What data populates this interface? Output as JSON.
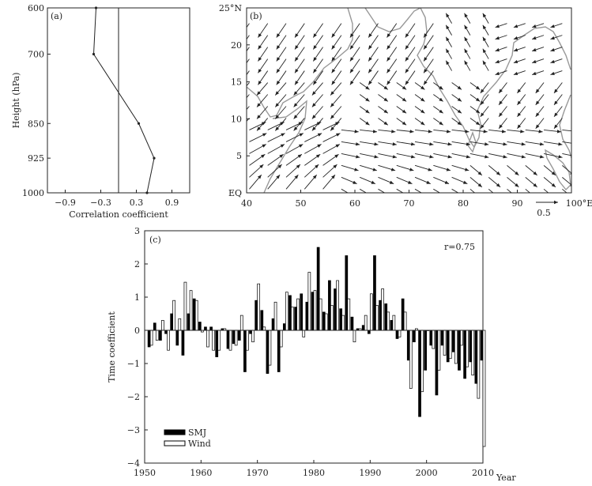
{
  "chart_data": [
    {
      "panel": "(a)",
      "type": "line",
      "xlabel": "Correlation coefficient",
      "ylabel": "Height (hPa)",
      "x_ticks": [
        "−0.9",
        "−0.3",
        "0.3",
        "0.9"
      ],
      "x_tick_values": [
        -0.9,
        -0.3,
        0.3,
        0.9
      ],
      "y_ticks": [
        "600",
        "700",
        "850",
        "925",
        "1000"
      ],
      "y_tick_values": [
        600,
        700,
        850,
        925,
        1000
      ],
      "xlim": [
        -1.2,
        1.2
      ],
      "ylim": [
        600,
        1000
      ],
      "reference_line_x": 0,
      "points": [
        {
          "level": 600,
          "r": -0.38
        },
        {
          "level": 700,
          "r": -0.42
        },
        {
          "level": 850,
          "r": 0.34
        },
        {
          "level": 925,
          "r": 0.6
        },
        {
          "level": 1000,
          "r": 0.48
        }
      ]
    },
    {
      "panel": "(b)",
      "type": "vector map",
      "x_ticks": [
        "40",
        "50",
        "60",
        "70",
        "80",
        "90",
        "100°E"
      ],
      "x_tick_values": [
        40,
        50,
        60,
        70,
        80,
        90,
        100
      ],
      "y_ticks": [
        "EQ",
        "5",
        "10",
        "15",
        "20",
        "25°N"
      ],
      "y_tick_values": [
        0,
        5,
        10,
        15,
        20,
        25
      ],
      "xlim": [
        40,
        100
      ],
      "ylim": [
        0,
        25
      ],
      "reference_vector_label": "0.5",
      "reference_vector_magnitude": 0.5,
      "land_outline_color": "#999999",
      "arrow_color": "#222222"
    },
    {
      "panel": "(c)",
      "type": "bar",
      "annotation": "r=0.75",
      "ylabel": "Time  coefficient",
      "xlabel": "Year",
      "xlim": [
        1950,
        2010
      ],
      "ylim": [
        -4,
        3
      ],
      "x_ticks": [
        "1950",
        "1960",
        "1970",
        "1980",
        "1990",
        "2000",
        "2010"
      ],
      "x_tick_values": [
        1950,
        1960,
        1970,
        1980,
        1990,
        2000,
        2010
      ],
      "y_ticks": [
        "−4",
        "−3",
        "−2",
        "−1",
        "0",
        "1",
        "2",
        "3"
      ],
      "y_tick_values": [
        -4,
        -3,
        -2,
        -1,
        0,
        1,
        2,
        3
      ],
      "years": [
        1951,
        1952,
        1953,
        1954,
        1955,
        1956,
        1957,
        1958,
        1959,
        1960,
        1961,
        1962,
        1963,
        1964,
        1965,
        1966,
        1967,
        1968,
        1969,
        1970,
        1971,
        1972,
        1973,
        1974,
        1975,
        1976,
        1977,
        1978,
        1979,
        1980,
        1981,
        1982,
        1983,
        1984,
        1985,
        1986,
        1987,
        1988,
        1989,
        1990,
        1991,
        1992,
        1993,
        1994,
        1995,
        1996,
        1997,
        1998,
        1999,
        2000,
        2001,
        2002,
        2003,
        2004,
        2005,
        2006,
        2007,
        2008,
        2009,
        2010
      ],
      "series": [
        {
          "name": "SMJ",
          "color": "#000000",
          "values": [
            -0.5,
            0.22,
            -0.3,
            -0.1,
            0.5,
            -0.45,
            -0.75,
            0.5,
            0.95,
            0.25,
            0.1,
            0.1,
            -0.8,
            0.05,
            -0.55,
            -0.4,
            -0.3,
            -1.25,
            -0.1,
            0.9,
            0.6,
            -1.3,
            0.35,
            -1.25,
            0.2,
            1.05,
            0.7,
            1.1,
            0.85,
            1.15,
            2.5,
            0.55,
            1.5,
            1.25,
            0.65,
            2.25,
            0.4,
            0.05,
            0.15,
            -0.1,
            2.25,
            0.9,
            0.8,
            0.3,
            -0.25,
            0.95,
            -0.9,
            -0.35,
            -2.6,
            -1.2,
            -0.45,
            -1.95,
            -0.45,
            -0.95,
            -0.65,
            -1.2,
            -1.45,
            -0.95,
            -1.6,
            -0.9
          ]
        },
        {
          "name": "Wind",
          "color": "#ffffff",
          "values": [
            -0.45,
            -0.3,
            0.3,
            -0.6,
            0.9,
            0.35,
            1.45,
            1.2,
            0.9,
            -0.05,
            -0.5,
            -0.6,
            -0.6,
            0.05,
            -0.6,
            -0.45,
            0.45,
            -0.6,
            -0.35,
            1.4,
            0.1,
            -1.05,
            0.85,
            -0.5,
            1.15,
            0.7,
            0.95,
            -0.2,
            1.75,
            1.2,
            0.95,
            0.5,
            0.75,
            1.5,
            0.45,
            0.95,
            -0.35,
            0.05,
            0.45,
            1.1,
            0.75,
            1.25,
            0.55,
            0.45,
            -0.2,
            0.55,
            -1.75,
            0.05,
            -1.85,
            0.0,
            -0.55,
            -1.2,
            -0.75,
            -0.85,
            -1.0,
            -0.45,
            -1.1,
            -1.35,
            -2.05,
            -3.5
          ]
        }
      ],
      "legend": [
        "SMJ",
        "Wind"
      ],
      "legend_position": "bottom-left"
    }
  ]
}
